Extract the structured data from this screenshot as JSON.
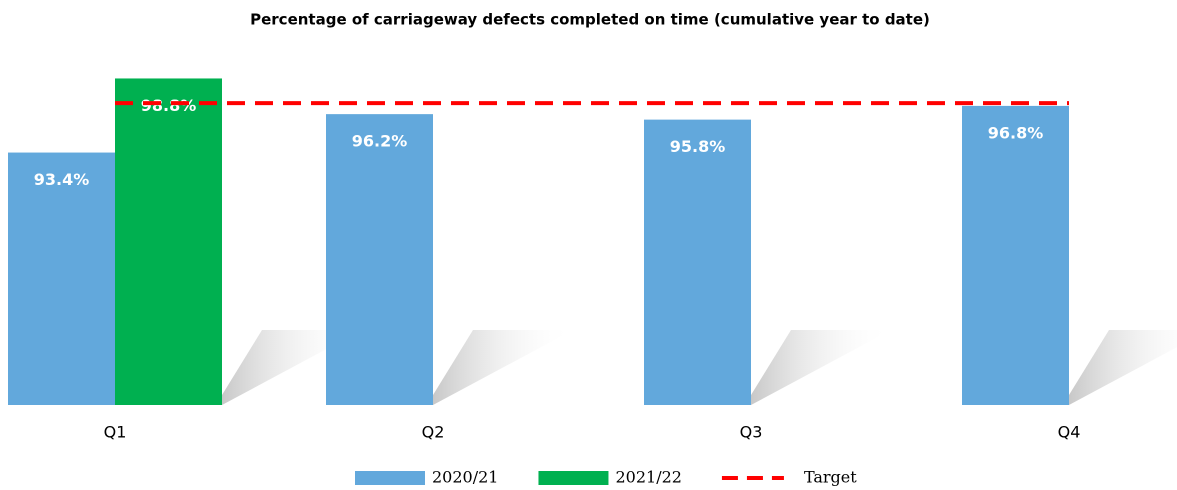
{
  "chart_data": {
    "type": "bar",
    "title": "Percentage of carriageway defects completed on time (cumulative year to date)",
    "categories": [
      "Q1",
      "Q2",
      "Q3",
      "Q4"
    ],
    "series": [
      {
        "name": "2020/21",
        "color": "#62a8dc",
        "values": [
          93.4,
          96.2,
          95.8,
          96.8
        ],
        "value_labels": [
          "93.4%",
          "96.2%",
          "95.8%",
          "96.8%"
        ]
      },
      {
        "name": "2021/22",
        "color": "#00b050",
        "values": [
          98.8,
          null,
          null,
          null
        ],
        "value_labels": [
          "98.8%",
          null,
          null,
          null
        ]
      }
    ],
    "target": {
      "name": "Target",
      "value": 97,
      "color": "#ff0000"
    },
    "ylim": [
      75,
      100
    ]
  }
}
